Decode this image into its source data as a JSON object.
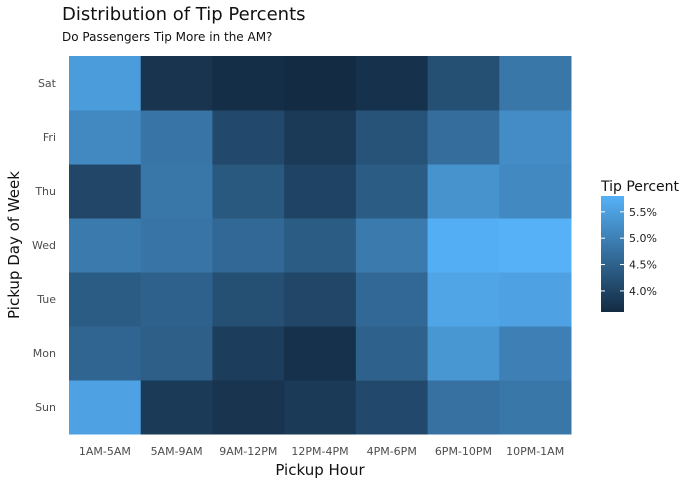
{
  "chart_data": {
    "type": "heatmap",
    "title": "Distribution of Tip Percents",
    "subtitle": "Do Passengers Tip More in the AM?",
    "xlabel": "Pickup Hour",
    "ylabel": "Pickup Day of Week",
    "x_categories": [
      "1AM-5AM",
      "5AM-9AM",
      "9AM-12PM",
      "12PM-4PM",
      "4PM-6PM",
      "6PM-10PM",
      "10PM-1AM"
    ],
    "y_categories": [
      "Sun",
      "Mon",
      "Tue",
      "Wed",
      "Thu",
      "Fri",
      "Sat"
    ],
    "values": [
      [
        5.55,
        3.85,
        3.75,
        3.85,
        4.1,
        4.75,
        4.85
      ],
      [
        4.55,
        4.45,
        3.9,
        3.7,
        4.5,
        5.35,
        5.0
      ],
      [
        4.4,
        4.5,
        4.2,
        4.05,
        4.6,
        5.6,
        5.55
      ],
      [
        4.9,
        4.8,
        4.6,
        4.4,
        4.9,
        5.75,
        5.8
      ],
      [
        4.05,
        4.85,
        4.35,
        4.0,
        4.4,
        5.3,
        5.15
      ],
      [
        5.15,
        4.8,
        4.1,
        3.85,
        4.25,
        4.7,
        5.2
      ],
      [
        5.45,
        3.75,
        3.65,
        3.6,
        3.7,
        4.2,
        4.85
      ]
    ],
    "legend": {
      "title": "Tip Percent",
      "ticks": [
        4.0,
        4.5,
        5.0,
        5.5
      ],
      "tick_labels": [
        "4.0%",
        "4.5%",
        "5.0%",
        "5.5%"
      ],
      "range": [
        3.6,
        5.8
      ],
      "low_color": "#132B43",
      "high_color": "#56B1F7",
      "placement": "right"
    },
    "grid": true
  }
}
